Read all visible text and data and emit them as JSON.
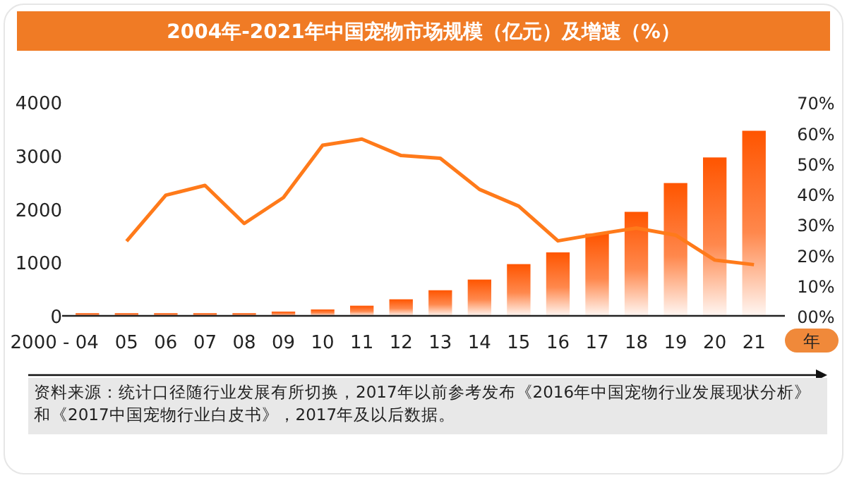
{
  "chart_data": {
    "type": "bar",
    "title": "2004年-2021年中国宠物市场规模（亿元）及增速（%）",
    "xlabel": "年",
    "categories": [
      "2000 - 04",
      "05",
      "06",
      "07",
      "08",
      "09",
      "10",
      "11",
      "12",
      "13",
      "14",
      "15",
      "16",
      "17",
      "18",
      "19",
      "20",
      "21"
    ],
    "series": [
      {
        "color": "#ff5500",
        "values": [
          50,
          50,
          50,
          50,
          50,
          80,
          120,
          190,
          310,
          480,
          680,
          970,
          1190,
          1540,
          1950,
          2490,
          2970,
          3470
        ]
      },
      {
        "type": "line",
        "axis": "y2",
        "color": "#ff7a1a",
        "values": [
          null,
          24.5,
          39.6,
          42.8,
          30.3,
          38.8,
          56,
          58,
          52.6,
          51.7,
          41.5,
          36,
          24.6,
          26.8,
          28.8,
          26.5,
          18.3,
          16.8
        ]
      }
    ],
    "ylim": [
      0,
      4000
    ],
    "yticks": [
      0,
      1000,
      2000,
      3000,
      4000
    ],
    "y2lim": [
      0,
      70
    ],
    "y2ticks": [
      {
        "value": 0,
        "label": "00%"
      },
      {
        "value": 10,
        "label": "10%"
      },
      {
        "value": 20,
        "label": "20%"
      },
      {
        "value": 30,
        "label": "30%"
      },
      {
        "value": 40,
        "label": "40%"
      },
      {
        "value": 50,
        "label": "50%"
      },
      {
        "value": 60,
        "label": "60%"
      },
      {
        "value": 70,
        "label": "70%"
      }
    ],
    "grid": false,
    "annotations": [
      "资料来源：统计口径随行业发展有所切换，2017年以前参考发布《2016年中国宠物行业发展现状分析》和《2017中国宠物行业白皮书》，2017年及以后数据。"
    ]
  }
}
